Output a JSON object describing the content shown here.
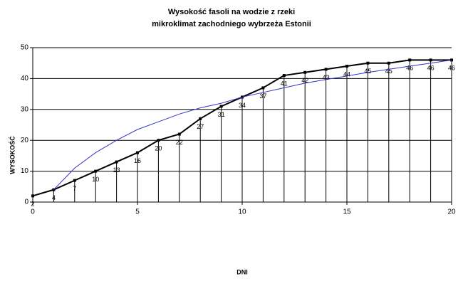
{
  "chart_data": {
    "type": "line",
    "title": [
      "Wysokość fasoli na wodzie z rzeki",
      "mikroklimat zachodniego wybrzeża Estonii"
    ],
    "x_label": "DNI",
    "y_label": "WYSOKOŚĆ",
    "x": [
      0,
      1,
      2,
      3,
      4,
      5,
      6,
      7,
      8,
      9,
      10,
      11,
      12,
      13,
      14,
      15,
      16,
      17,
      18,
      19,
      20
    ],
    "series": [
      {
        "color": "#000000",
        "values": [
          2,
          4,
          7,
          10,
          13,
          16,
          20,
          22,
          27,
          31,
          34,
          37,
          41,
          42,
          43,
          44,
          45,
          45,
          46,
          46,
          46
        ],
        "value_labels_shown": true,
        "drop_lines": true,
        "markers": true
      },
      {
        "color": "#3333cc",
        "values": [
          null,
          4,
          11,
          16,
          20,
          23.5,
          26,
          28.5,
          30.5,
          32,
          34,
          35.5,
          37,
          38.5,
          39.7,
          40.8,
          42,
          43,
          44,
          45,
          46
        ],
        "markers": false
      }
    ],
    "xlim": [
      0,
      20
    ],
    "xticks": [
      0,
      5,
      10,
      15,
      20
    ],
    "ylim": [
      0,
      50
    ],
    "yticks": [
      0,
      10,
      20,
      30,
      40,
      50
    ],
    "grid": true
  }
}
